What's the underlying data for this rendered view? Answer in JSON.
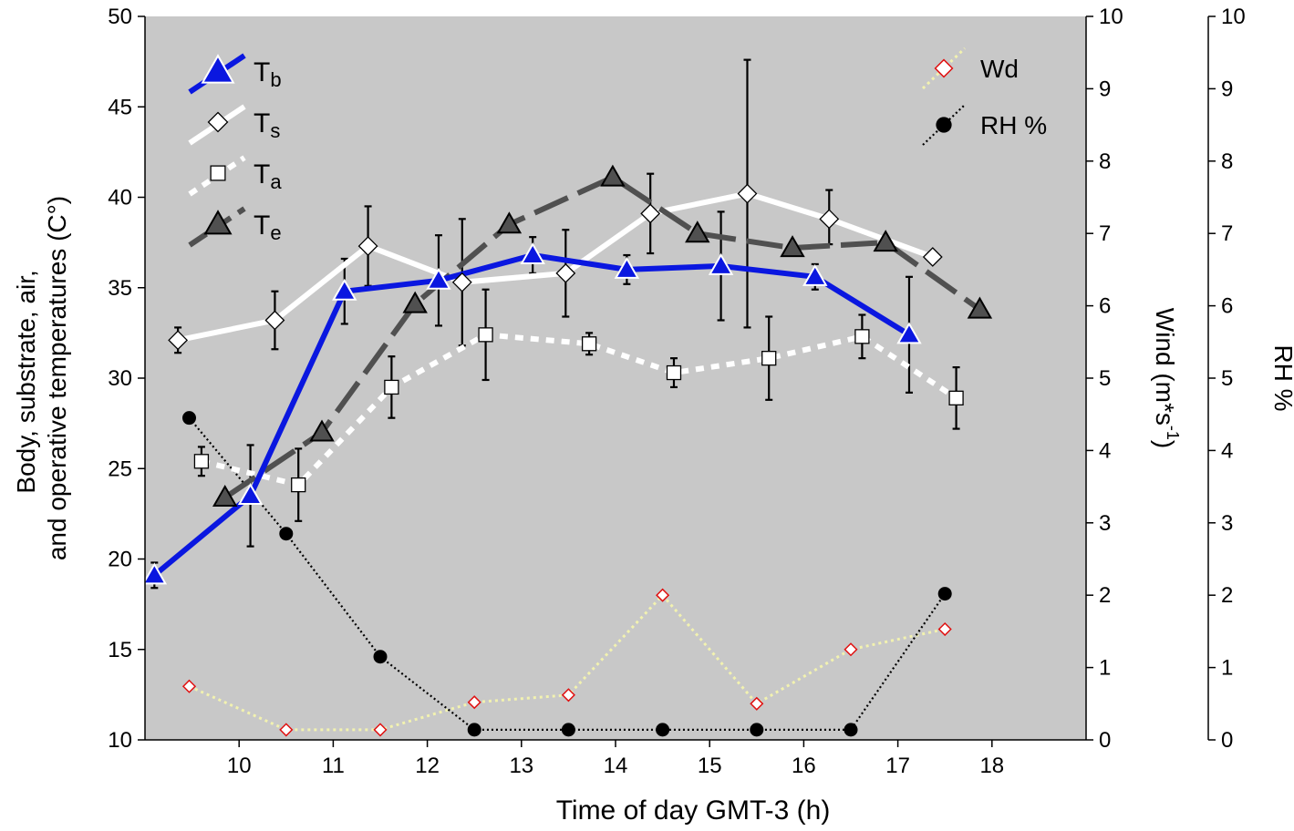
{
  "chart_data": {
    "type": "line",
    "xlabel": "Time of day GMT-3 (h)",
    "ylabel_left_lines": [
      "Body, substrate, air,",
      "and operative temperatures (C°)"
    ],
    "ylabel_wind": "Wind (m*s",
    "ylabel_wind_sup": "-1",
    "ylabel_wind_close": ")",
    "ylabel_rh": "RH %",
    "xlim": [
      9,
      19
    ],
    "xticks": [
      "10",
      "11",
      "12",
      "13",
      "14",
      "15",
      "16",
      "17",
      "18"
    ],
    "ylim_left": [
      10,
      50
    ],
    "yticks_left": [
      "10",
      "15",
      "20",
      "25",
      "30",
      "35",
      "40",
      "45",
      "50"
    ],
    "ylim_wind": [
      0,
      10
    ],
    "yticks_wind": [
      "0",
      "1",
      "2",
      "3",
      "4",
      "5",
      "6",
      "7",
      "8",
      "9",
      "10"
    ],
    "ylim_rh": [
      0,
      10
    ],
    "yticks_rh": [
      "0",
      "1",
      "2",
      "3",
      "4",
      "5",
      "6",
      "7",
      "8",
      "9",
      "10"
    ],
    "colors": {
      "plot_bg": "#c8c8c8",
      "tb": "#0a17e0",
      "ts": "#ffffff",
      "ta": "#ffffff",
      "te": "#505050",
      "wd_line": "#f2f2b0",
      "wd_marker": "#e01010",
      "rh": "#000000"
    },
    "series": [
      {
        "name": "Tb",
        "key": "tb",
        "label_main": "T",
        "label_sub": "b",
        "axis": "left",
        "x": [
          9.1,
          10.12,
          11.12,
          12.12,
          13.12,
          14.12,
          15.12,
          16.12,
          17.12
        ],
        "y": [
          19.1,
          23.5,
          34.8,
          35.4,
          36.8,
          36.0,
          36.2,
          35.6,
          32.4
        ],
        "err_lo": [
          0.7,
          2.8,
          1.8,
          2.5,
          1.0,
          0.8,
          3.0,
          0.7,
          3.2
        ],
        "err_hi": [
          0.7,
          2.8,
          1.8,
          2.5,
          1.0,
          0.8,
          3.0,
          0.7,
          3.2
        ]
      },
      {
        "name": "Ts",
        "key": "ts",
        "label_main": "T",
        "label_sub": "s",
        "axis": "left",
        "x": [
          9.35,
          10.38,
          11.37,
          12.37,
          13.47,
          14.37,
          15.4,
          16.27,
          17.37
        ],
        "y": [
          32.1,
          33.2,
          37.3,
          35.3,
          35.8,
          39.1,
          40.2,
          38.8,
          36.7
        ],
        "err_lo": [
          0.7,
          1.6,
          2.2,
          3.5,
          2.4,
          2.2,
          7.4,
          1.4,
          0
        ],
        "err_hi": [
          0.7,
          1.6,
          2.2,
          3.5,
          2.4,
          2.2,
          7.4,
          1.6,
          0
        ]
      },
      {
        "name": "Ta",
        "key": "ta",
        "label_main": "T",
        "label_sub": "a",
        "axis": "left",
        "x": [
          9.6,
          10.63,
          11.62,
          12.62,
          13.72,
          14.62,
          15.63,
          16.62,
          17.62
        ],
        "y": [
          25.4,
          24.1,
          29.5,
          32.4,
          31.9,
          30.3,
          31.1,
          32.3,
          28.9
        ],
        "err_lo": [
          0.8,
          2.0,
          1.7,
          2.5,
          0.6,
          0.8,
          2.3,
          1.2,
          1.7
        ],
        "err_hi": [
          0.8,
          2.0,
          1.7,
          2.5,
          0.6,
          0.8,
          2.3,
          1.2,
          1.7
        ]
      },
      {
        "name": "Te",
        "key": "te",
        "label_main": "T",
        "label_sub": "e",
        "axis": "left",
        "x": [
          9.85,
          10.88,
          11.87,
          12.87,
          13.97,
          14.87,
          15.88,
          16.87,
          17.87
        ],
        "y": [
          23.4,
          27.0,
          34.1,
          38.5,
          41.1,
          38.0,
          37.2,
          37.5,
          33.8
        ],
        "err_lo": [
          0,
          0,
          0,
          0,
          0,
          0,
          0,
          0,
          0
        ],
        "err_hi": [
          0,
          0,
          0,
          0,
          0,
          0,
          0,
          0,
          0
        ]
      },
      {
        "name": "Wd",
        "key": "wd",
        "label_main": "Wd",
        "label_sub": "",
        "axis": "wind",
        "x": [
          9.47,
          10.5,
          11.5,
          12.5,
          13.5,
          14.5,
          15.5,
          16.5,
          17.5
        ],
        "y": [
          0.74,
          0.14,
          0.14,
          0.52,
          0.62,
          2.0,
          0.5,
          1.25,
          1.53
        ]
      },
      {
        "name": "RH %",
        "key": "rh",
        "label_main": "RH %",
        "label_sub": "",
        "axis": "rh",
        "x": [
          9.47,
          10.5,
          11.5,
          12.5,
          13.5,
          14.5,
          15.5,
          16.5,
          17.5
        ],
        "y": [
          4.45,
          2.85,
          1.15,
          0.14,
          0.14,
          0.14,
          0.14,
          0.14,
          2.02
        ]
      }
    ]
  }
}
